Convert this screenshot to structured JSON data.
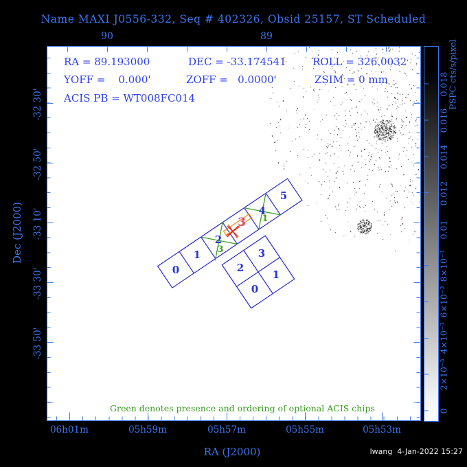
{
  "title": "Name MAXI J0556-332, Seq # 402326, Obsid 25157, ST Scheduled",
  "info": {
    "ra": "RA = 89.193000",
    "dec": "DEC = -33.174541",
    "roll": "ROLL = 326.0032",
    "yoff": "YOFF =    0.000'",
    "zoff": "ZOFF =   0.0000'",
    "zsim": "ZSIM = 0 mm",
    "acis_pb": "ACIS PB = WT008FC014"
  },
  "axes": {
    "x_title": "RA (J2000)",
    "y_title": "Dec (J2000)",
    "top": [
      "90",
      "89"
    ],
    "bottom": [
      "06h01m",
      "05h59m",
      "05h57m",
      "05h55m",
      "05h53m"
    ],
    "left": [
      "-32 30'",
      "-32 50'",
      "-33 10'",
      "-33 30'",
      "-33 50'"
    ]
  },
  "colorbar": {
    "unit": "PSPC cts/s/pixel",
    "ticks": [
      "0.018",
      "0.016",
      "0.014",
      "0.012",
      "0.01",
      "8×10⁻³",
      "6×10⁻³",
      "4×10⁻³",
      "2×10⁻³",
      "0"
    ]
  },
  "chips": {
    "acis_s": [
      "0",
      "1",
      "2",
      "3",
      "4",
      "5"
    ],
    "acis_i": [
      "0",
      "1",
      "2",
      "3"
    ],
    "optional_order": [
      "3",
      "1"
    ]
  },
  "notes": {
    "green_note": "Green denotes presence and ordering of optional ACIS chips",
    "credit": "lwang  4-Jan-2022 15:27"
  },
  "colors": {
    "frame_blue": "#3b76f0",
    "text_blue": "#2d3ff0",
    "chip_blue": "#2929cf",
    "green": "#3ba022",
    "pink": "#e34679",
    "orange": "#f6981e",
    "red": "#e42222",
    "background": "#000000",
    "plot_background": "#ffffff"
  }
}
